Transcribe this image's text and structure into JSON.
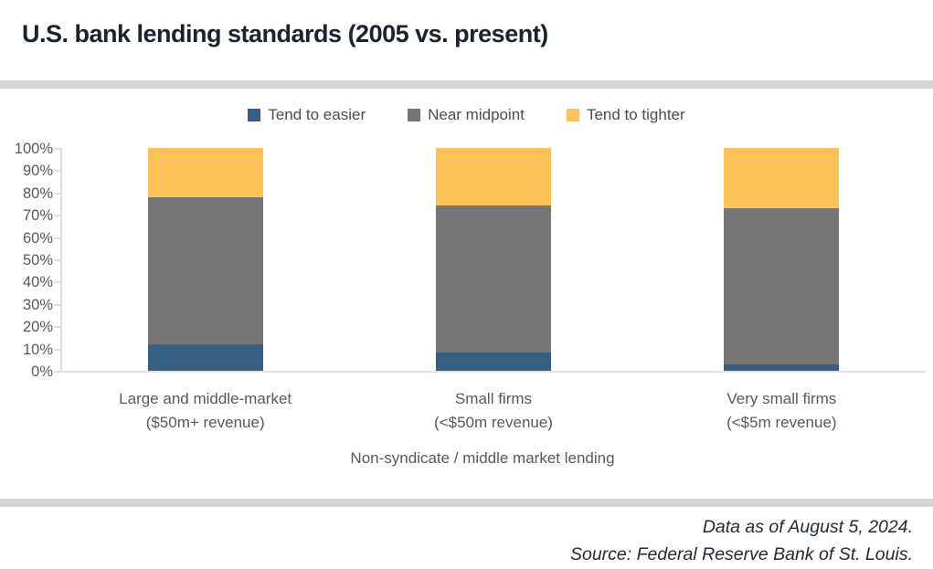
{
  "page": {
    "title": "U.S. bank lending standards (2005 vs. present)",
    "footer": {
      "line1": "Data as of August 5, 2024.",
      "line2": "Source: Federal Reserve Bank of St. Louis."
    }
  },
  "colors": {
    "easier": "#365f82",
    "midpoint": "#767676",
    "tighter": "#fdc35a",
    "axis_line": "#dedee0",
    "divider": "#d4d4d6",
    "title_text": "#1a232e",
    "axis_text": "#595959"
  },
  "chart_data": {
    "type": "bar",
    "stacked": true,
    "title": "U.S. bank lending standards (2005 vs. present)",
    "xlabel": "Non-syndicate / middle market lending",
    "ylabel": "",
    "ylim": [
      0,
      100
    ],
    "ytick_step": 10,
    "ytick_suffix": "%",
    "grid": false,
    "legend_position": "top",
    "categories": [
      [
        "Large and middle-market",
        "($50m+ revenue)"
      ],
      [
        "Small firms",
        "(<$50m revenue)"
      ],
      [
        "Very small firms",
        "(<$5m revenue)"
      ]
    ],
    "series": [
      {
        "name": "Tend to easier",
        "color": "#365f82",
        "values": [
          12,
          8,
          3
        ]
      },
      {
        "name": "Near midpoint",
        "color": "#767676",
        "values": [
          66,
          66,
          70
        ]
      },
      {
        "name": "Tend to tighter",
        "color": "#fdc35a",
        "values": [
          22,
          26,
          27
        ]
      }
    ]
  }
}
